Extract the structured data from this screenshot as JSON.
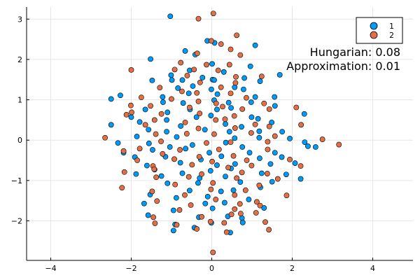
{
  "chart_data": {
    "type": "scatter",
    "xlim": [
      -4.6,
      5.0
    ],
    "ylim": [
      -2.98,
      3.3
    ],
    "xticks": [
      -4,
      -2,
      0,
      2,
      4
    ],
    "yticks": [
      -2,
      -1,
      0,
      1,
      2,
      3
    ],
    "xtick_labels": [
      "−4",
      "−2",
      "0",
      "2",
      "4"
    ],
    "ytick_labels": [
      "−2",
      "−1",
      "0",
      "1",
      "2",
      "3"
    ],
    "grid": true,
    "legend_position": "top-right",
    "annotations": [
      "Hungarian: 0.08",
      "Approximation: 0.01"
    ],
    "series": [
      {
        "name": "1",
        "color": "#009af9",
        "points": [
          [
            -1.03,
            3.07
          ],
          [
            -0.11,
            2.46
          ],
          [
            0.07,
            2.41
          ],
          [
            1.08,
            2.35
          ],
          [
            -0.66,
            2.21
          ],
          [
            -0.41,
            2.12
          ],
          [
            -1.52,
            2.01
          ],
          [
            0.01,
            1.89
          ],
          [
            0.96,
            1.83
          ],
          [
            -0.55,
            1.73
          ],
          [
            0.3,
            1.69
          ],
          [
            -0.23,
            1.55
          ],
          [
            0.02,
            1.5
          ],
          [
            0.06,
            1.49
          ],
          [
            -1.01,
            1.61
          ],
          [
            -0.99,
            1.49
          ],
          [
            1.69,
            1.62
          ],
          [
            -0.73,
            1.49
          ],
          [
            0.81,
            1.54
          ],
          [
            1.2,
            1.46
          ],
          [
            -1.48,
            1.48
          ],
          [
            -0.47,
            1.34
          ],
          [
            -0.01,
            1.26
          ],
          [
            -0.84,
            1.29
          ],
          [
            0.57,
            1.31
          ],
          [
            -2.27,
            1.11
          ],
          [
            -0.57,
            1.16
          ],
          [
            0.79,
            1.26
          ],
          [
            0.14,
            1.14
          ],
          [
            1.08,
            1.07
          ],
          [
            1.56,
            1.07
          ],
          [
            -1.22,
            1.07
          ],
          [
            -2.5,
            1.02
          ],
          [
            -1.21,
            0.94
          ],
          [
            -0.71,
            0.92
          ],
          [
            0.06,
            0.99
          ],
          [
            0.42,
            0.93
          ],
          [
            0.98,
            0.94
          ],
          [
            2.3,
            0.65
          ],
          [
            1.57,
            0.85
          ],
          [
            -1.65,
            0.76
          ],
          [
            -1.1,
            0.69
          ],
          [
            -0.54,
            0.76
          ],
          [
            0.13,
            0.76
          ],
          [
            0.48,
            0.8
          ],
          [
            -2.0,
            0.57
          ],
          [
            -1.12,
            0.5
          ],
          [
            -0.38,
            0.57
          ],
          [
            -0.02,
            0.61
          ],
          [
            0.99,
            0.57
          ],
          [
            1.15,
            0.53
          ],
          [
            -1.79,
            0.45
          ],
          [
            -0.77,
            0.35
          ],
          [
            0.34,
            0.4
          ],
          [
            1.49,
            0.44
          ],
          [
            -2.5,
            0.38
          ],
          [
            -1.57,
            0.26
          ],
          [
            -1.12,
            0.21
          ],
          [
            -0.17,
            0.26
          ],
          [
            0.44,
            0.21
          ],
          [
            0.74,
            0.33
          ],
          [
            1.18,
            0.22
          ],
          [
            1.75,
            0.21
          ],
          [
            -1.86,
            0.09
          ],
          [
            -0.87,
            0.08
          ],
          [
            0.57,
            0.05
          ],
          [
            1.18,
            0.06
          ],
          [
            1.94,
            0.04
          ],
          [
            2.31,
            -0.05
          ],
          [
            -2.33,
            -0.07
          ],
          [
            -1.56,
            -0.08
          ],
          [
            -1.04,
            -0.17
          ],
          [
            -0.48,
            -0.12
          ],
          [
            0.35,
            -0.06
          ],
          [
            0.76,
            -0.17
          ],
          [
            2.39,
            -0.15
          ],
          [
            2.58,
            -0.17
          ],
          [
            -2.19,
            -0.31
          ],
          [
            -1.47,
            -0.24
          ],
          [
            -0.65,
            -0.21
          ],
          [
            -0.06,
            -0.31
          ],
          [
            0.94,
            -0.31
          ],
          [
            1.57,
            -0.31
          ],
          [
            -1.91,
            -0.42
          ],
          [
            -1.15,
            -0.41
          ],
          [
            -0.27,
            -0.48
          ],
          [
            0.24,
            -0.4
          ],
          [
            1.19,
            -0.45
          ],
          [
            1.74,
            -0.42
          ],
          [
            -1.61,
            -0.63
          ],
          [
            -0.78,
            -0.56
          ],
          [
            0.13,
            -0.62
          ],
          [
            0.58,
            -0.59
          ],
          [
            1.46,
            -0.59
          ],
          [
            2.07,
            -0.57
          ],
          [
            -1.42,
            -0.73
          ],
          [
            -0.73,
            -0.82
          ],
          [
            -0.03,
            -0.76
          ],
          [
            0.48,
            -0.7
          ],
          [
            1.24,
            -0.82
          ],
          [
            -1.88,
            -0.84
          ],
          [
            -1.25,
            -0.89
          ],
          [
            -0.3,
            -0.94
          ],
          [
            0.34,
            -0.9
          ],
          [
            1.85,
            -0.85
          ],
          [
            2.21,
            -0.96
          ],
          [
            -1.1,
            -1.07
          ],
          [
            -0.34,
            -1.06
          ],
          [
            0.71,
            -1.04
          ],
          [
            1.5,
            -1.03
          ],
          [
            -0.55,
            -1.25
          ],
          [
            0.23,
            -1.27
          ],
          [
            0.54,
            -1.24
          ],
          [
            1.21,
            -1.17
          ],
          [
            -1.53,
            -1.35
          ],
          [
            -0.88,
            -1.43
          ],
          [
            -0.1,
            -1.4
          ],
          [
            0.92,
            -1.47
          ],
          [
            -1.68,
            -1.57
          ],
          [
            -0.16,
            -1.57
          ],
          [
            0.32,
            -1.55
          ],
          [
            -0.95,
            -1.74
          ],
          [
            0.02,
            -1.69
          ],
          [
            1.3,
            -1.68
          ],
          [
            -1.58,
            -1.86
          ],
          [
            -0.32,
            -1.91
          ],
          [
            0.4,
            -1.89
          ],
          [
            0.75,
            -1.93
          ],
          [
            -0.91,
            -2.09
          ],
          [
            -0.01,
            -2.05
          ],
          [
            0.77,
            -2.04
          ],
          [
            -0.43,
            -2.17
          ],
          [
            -0.95,
            -2.24
          ],
          [
            0.46,
            -2.29
          ]
        ]
      },
      {
        "name": "2",
        "color": "#e26f46",
        "points": [
          [
            0.04,
            3.14
          ],
          [
            -0.33,
            3.01
          ],
          [
            0.62,
            2.6
          ],
          [
            -0.01,
            2.46
          ],
          [
            0.23,
            2.38
          ],
          [
            0.47,
            2.25
          ],
          [
            -0.36,
            2.15
          ],
          [
            0.71,
            2.11
          ],
          [
            -0.77,
            1.92
          ],
          [
            -0.13,
            1.87
          ],
          [
            0.44,
            1.87
          ],
          [
            -2.0,
            1.74
          ],
          [
            -0.92,
            1.75
          ],
          [
            -0.44,
            1.75
          ],
          [
            0.16,
            1.73
          ],
          [
            -0.61,
            1.6
          ],
          [
            0.6,
            1.57
          ],
          [
            1.24,
            1.58
          ],
          [
            -0.29,
            1.43
          ],
          [
            0.59,
            1.42
          ],
          [
            -1.29,
            1.3
          ],
          [
            0.23,
            1.31
          ],
          [
            -0.74,
            1.21
          ],
          [
            -0.37,
            1.17
          ],
          [
            0.47,
            1.16
          ],
          [
            -1.75,
            1.06
          ],
          [
            -1.0,
            1.02
          ],
          [
            0.86,
            1.05
          ],
          [
            1.3,
            0.91
          ],
          [
            -0.33,
            0.96
          ],
          [
            0.11,
            0.91
          ],
          [
            -2.01,
            0.86
          ],
          [
            -1.52,
            0.85
          ],
          [
            -0.55,
            0.81
          ],
          [
            0.27,
            0.83
          ],
          [
            0.76,
            0.77
          ],
          [
            1.43,
            0.77
          ],
          [
            2.1,
            0.81
          ],
          [
            -1.99,
            0.69
          ],
          [
            -1.25,
            0.65
          ],
          [
            -0.3,
            0.66
          ],
          [
            0.56,
            0.6
          ],
          [
            -2.12,
            0.63
          ],
          [
            -1.42,
            0.5
          ],
          [
            -0.66,
            0.44
          ],
          [
            0.1,
            0.5
          ],
          [
            0.33,
            0.52
          ],
          [
            1.08,
            0.39
          ],
          [
            -1.65,
            0.38
          ],
          [
            -0.33,
            0.29
          ],
          [
            0.58,
            0.3
          ],
          [
            1.43,
            0.34
          ],
          [
            2.22,
            0.38
          ],
          [
            -1.39,
            0.15
          ],
          [
            -0.62,
            0.16
          ],
          [
            0.06,
            0.15
          ],
          [
            0.98,
            0.18
          ],
          [
            1.57,
            0.1
          ],
          [
            2.75,
            0.02
          ],
          [
            -2.65,
            0.06
          ],
          [
            -1.26,
            -0.03
          ],
          [
            -0.13,
            -0.07
          ],
          [
            0.47,
            -0.05
          ],
          [
            1.39,
            -0.04
          ],
          [
            -1.79,
            -0.21
          ],
          [
            -0.79,
            -0.24
          ],
          [
            0.18,
            -0.23
          ],
          [
            1.39,
            -0.23
          ],
          [
            3.16,
            -0.11
          ],
          [
            -2.19,
            -0.27
          ],
          [
            -1.22,
            -0.34
          ],
          [
            -0.31,
            -0.41
          ],
          [
            0.54,
            -0.39
          ],
          [
            -1.85,
            -0.5
          ],
          [
            -0.93,
            -0.47
          ],
          [
            0.01,
            -0.53
          ],
          [
            0.87,
            -0.5
          ],
          [
            1.94,
            -0.48
          ],
          [
            -1.46,
            -0.64
          ],
          [
            -0.49,
            -0.61
          ],
          [
            0.41,
            -0.68
          ],
          [
            0.99,
            -0.63
          ],
          [
            2.21,
            -0.64
          ],
          [
            -1.43,
            -0.72
          ],
          [
            -0.25,
            -0.84
          ],
          [
            0.75,
            -0.8
          ],
          [
            1.38,
            -0.83
          ],
          [
            -2.17,
            -0.79
          ],
          [
            -1.38,
            -0.92
          ],
          [
            -0.57,
            -0.91
          ],
          [
            0.62,
            -0.94
          ],
          [
            1.64,
            -0.96
          ],
          [
            -0.91,
            -1.1
          ],
          [
            0.03,
            -1.06
          ],
          [
            1.18,
            -1.12
          ],
          [
            -2.23,
            -1.18
          ],
          [
            -1.48,
            -1.27
          ],
          [
            -0.02,
            -1.22
          ],
          [
            0.84,
            -1.24
          ],
          [
            1.86,
            -1.37
          ],
          [
            -0.67,
            -1.36
          ],
          [
            0.57,
            -1.36
          ],
          [
            -1.36,
            -1.51
          ],
          [
            0.1,
            -1.47
          ],
          [
            1.12,
            -1.53
          ],
          [
            -0.52,
            -1.61
          ],
          [
            0.57,
            -1.71
          ],
          [
            1.2,
            -1.62
          ],
          [
            -0.8,
            -1.73
          ],
          [
            0.72,
            -1.82
          ],
          [
            1.1,
            -1.8
          ],
          [
            -1.45,
            -1.91
          ],
          [
            -0.25,
            -1.9
          ],
          [
            0.49,
            -1.84
          ],
          [
            -0.03,
            -2.02
          ],
          [
            0.31,
            -2.05
          ],
          [
            1.33,
            -2.03
          ],
          [
            -0.87,
            -2.1
          ],
          [
            -0.37,
            -2.2
          ],
          [
            0.37,
            -2.28
          ],
          [
            1.42,
            -2.22
          ],
          [
            -1.41,
            -2.06
          ],
          [
            0.03,
            -2.78
          ],
          [
            0.7,
            -1.58
          ]
        ]
      }
    ]
  }
}
